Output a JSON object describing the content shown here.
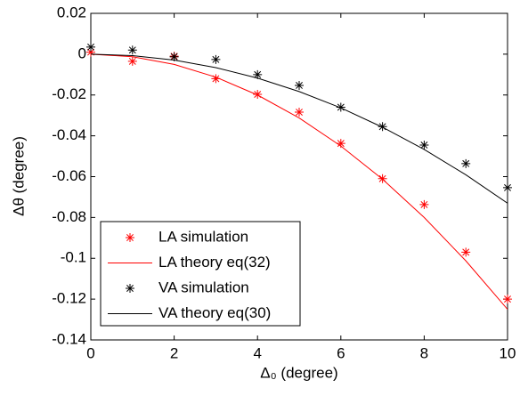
{
  "chart_data": {
    "type": "line",
    "x_label": "Δ₀ (degree)",
    "y_label": "Δθ (degree)",
    "xlim": [
      0,
      10
    ],
    "xticks": [
      0,
      2,
      4,
      6,
      8,
      10
    ],
    "ylim": [
      -0.14,
      0.02
    ],
    "yticks": [
      0.02,
      0,
      -0.02,
      -0.04,
      -0.06,
      -0.08,
      -0.1,
      -0.12,
      -0.14
    ],
    "legend_position": "lower-left",
    "grid": false,
    "series": [
      {
        "name": "LA simulation",
        "color": "#ff0000",
        "marker": "asterisk",
        "x": [
          0,
          1,
          2,
          3,
          4,
          5,
          6,
          7,
          8,
          9,
          10
        ],
        "values": [
          0.001,
          -0.0035,
          -0.001,
          -0.012,
          -0.0197,
          -0.0284,
          -0.0437,
          -0.061,
          -0.0737,
          -0.097,
          -0.12
        ]
      },
      {
        "name": "LA theory eq(32)",
        "color": "#ff0000",
        "marker": "none",
        "x": [
          0,
          1,
          2,
          3,
          4,
          5,
          6,
          7,
          8,
          9,
          10
        ],
        "values": [
          0,
          -0.00125,
          -0.005,
          -0.01125,
          -0.02,
          -0.03125,
          -0.045,
          -0.06125,
          -0.08,
          -0.10125,
          -0.125
        ]
      },
      {
        "name": "VA simulation",
        "color": "#000000",
        "marker": "asterisk",
        "x": [
          0,
          1,
          2,
          3,
          4,
          5,
          6,
          7,
          8,
          9,
          10
        ],
        "values": [
          0.0035,
          0.002,
          -0.0013,
          -0.0026,
          -0.01,
          -0.0153,
          -0.026,
          -0.0355,
          -0.0445,
          -0.0536,
          -0.0654
        ]
      },
      {
        "name": "VA theory eq(30)",
        "color": "#000000",
        "marker": "none",
        "x": [
          0,
          1,
          2,
          3,
          4,
          5,
          6,
          7,
          8,
          9,
          10
        ],
        "values": [
          0,
          -0.0007,
          -0.0029,
          -0.0066,
          -0.0117,
          -0.0183,
          -0.0263,
          -0.0358,
          -0.0467,
          -0.0591,
          -0.073
        ]
      }
    ]
  }
}
